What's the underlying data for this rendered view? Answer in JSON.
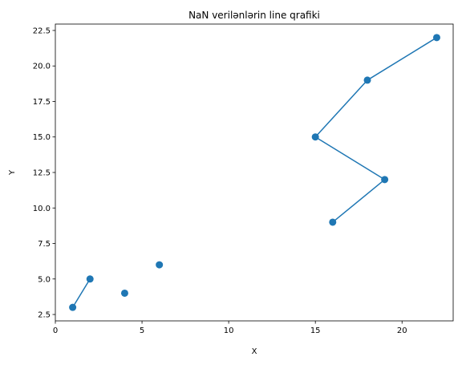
{
  "chart_data": {
    "type": "line",
    "title": "NaN verilənlərin line qrafiki",
    "xlabel": "X",
    "ylabel": "Y",
    "xlim": [
      0.0,
      22.95
    ],
    "ylim": [
      2.05,
      22.95
    ],
    "xticks": [
      0,
      5,
      10,
      15,
      20
    ],
    "xtick_labels": [
      "0",
      "5",
      "10",
      "15",
      "20"
    ],
    "yticks": [
      2.5,
      5.0,
      7.5,
      10.0,
      12.5,
      15.0,
      17.5,
      20.0,
      22.5
    ],
    "ytick_labels": [
      "2.5",
      "5.0",
      "7.5",
      "10.0",
      "12.5",
      "15.0",
      "17.5",
      "20.0",
      "22.5"
    ],
    "grid": false,
    "series": [
      {
        "color": "#1f77b4",
        "marker": "circle",
        "x": [
          1,
          2,
          null,
          4,
          null,
          6,
          null,
          16,
          19,
          15,
          18,
          22
        ],
        "y": [
          3,
          5,
          null,
          4,
          null,
          6,
          null,
          9,
          12,
          15,
          19,
          22
        ]
      }
    ]
  }
}
